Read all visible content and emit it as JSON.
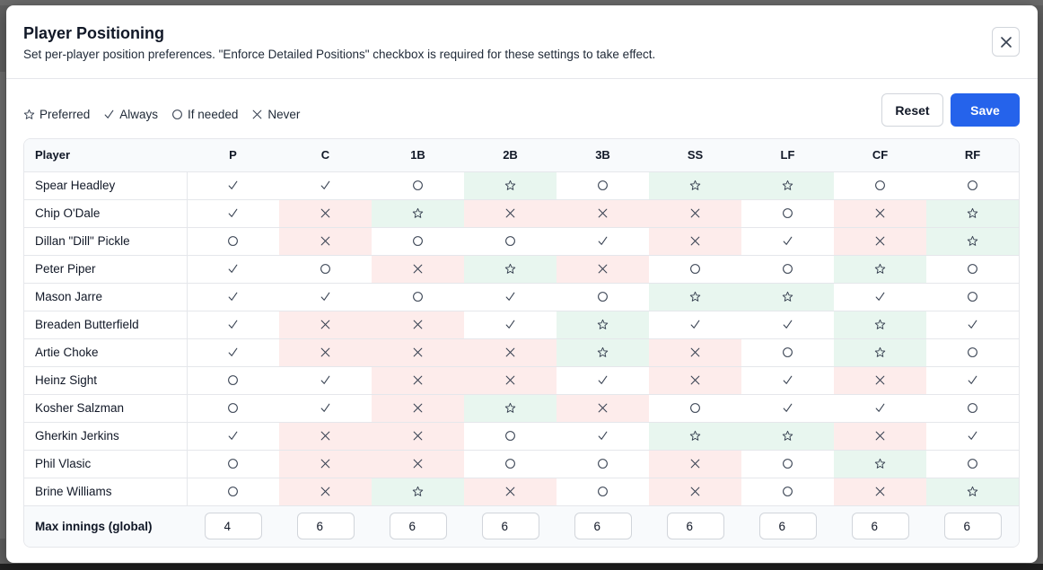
{
  "modal": {
    "title": "Player Positioning",
    "subtitle": "Set per-player position preferences. \"Enforce Detailed Positions\" checkbox is required for these settings to take effect."
  },
  "legend": [
    {
      "key": "preferred",
      "icon": "star-outline-icon",
      "label": "Preferred"
    },
    {
      "key": "always",
      "icon": "check-icon",
      "label": "Always"
    },
    {
      "key": "ifneeded",
      "icon": "circle-outline-icon",
      "label": "If needed"
    },
    {
      "key": "never",
      "icon": "x-icon",
      "label": "Never"
    }
  ],
  "buttons": {
    "reset": "Reset",
    "save": "Save"
  },
  "table": {
    "player_header": "Player",
    "positions": [
      "P",
      "C",
      "1B",
      "2B",
      "3B",
      "SS",
      "LF",
      "CF",
      "RF"
    ],
    "rows": [
      {
        "name": "Spear Headley",
        "prefs": [
          "always",
          "always",
          "ifneeded",
          "preferred",
          "ifneeded",
          "preferred",
          "preferred",
          "ifneeded",
          "ifneeded"
        ]
      },
      {
        "name": "Chip O'Dale",
        "prefs": [
          "always",
          "never",
          "preferred",
          "never",
          "never",
          "never",
          "ifneeded",
          "never",
          "preferred"
        ]
      },
      {
        "name": "Dillan \"Dill\" Pickle",
        "prefs": [
          "ifneeded",
          "never",
          "ifneeded",
          "ifneeded",
          "always",
          "never",
          "always",
          "never",
          "preferred"
        ]
      },
      {
        "name": "Peter Piper",
        "prefs": [
          "always",
          "ifneeded",
          "never",
          "preferred",
          "never",
          "ifneeded",
          "ifneeded",
          "preferred",
          "ifneeded"
        ]
      },
      {
        "name": "Mason Jarre",
        "prefs": [
          "always",
          "always",
          "ifneeded",
          "always",
          "ifneeded",
          "preferred",
          "preferred",
          "always",
          "ifneeded"
        ]
      },
      {
        "name": "Breaden Butterfield",
        "prefs": [
          "always",
          "never",
          "never",
          "always",
          "preferred",
          "always",
          "always",
          "preferred",
          "always"
        ]
      },
      {
        "name": "Artie Choke",
        "prefs": [
          "always",
          "never",
          "never",
          "never",
          "preferred",
          "never",
          "ifneeded",
          "preferred",
          "ifneeded"
        ]
      },
      {
        "name": "Heinz Sight",
        "prefs": [
          "ifneeded",
          "always",
          "never",
          "never",
          "always",
          "never",
          "always",
          "never",
          "always"
        ]
      },
      {
        "name": "Kosher Salzman",
        "prefs": [
          "ifneeded",
          "always",
          "never",
          "preferred",
          "never",
          "ifneeded",
          "always",
          "always",
          "ifneeded"
        ]
      },
      {
        "name": "Gherkin Jerkins",
        "prefs": [
          "always",
          "never",
          "never",
          "ifneeded",
          "always",
          "preferred",
          "preferred",
          "never",
          "always"
        ]
      },
      {
        "name": "Phil Vlasic",
        "prefs": [
          "ifneeded",
          "never",
          "never",
          "ifneeded",
          "ifneeded",
          "never",
          "ifneeded",
          "preferred",
          "ifneeded"
        ]
      },
      {
        "name": "Brine Williams",
        "prefs": [
          "ifneeded",
          "never",
          "preferred",
          "never",
          "ifneeded",
          "never",
          "ifneeded",
          "never",
          "preferred"
        ]
      }
    ],
    "max_innings": {
      "label": "Max innings (global)",
      "values": [
        "4",
        "6",
        "6",
        "6",
        "6",
        "6",
        "6",
        "6",
        "6"
      ]
    }
  },
  "colors": {
    "preferred_bg": "#e8f6ef",
    "never_bg": "#fdeceb",
    "save_bg": "#2563eb"
  }
}
